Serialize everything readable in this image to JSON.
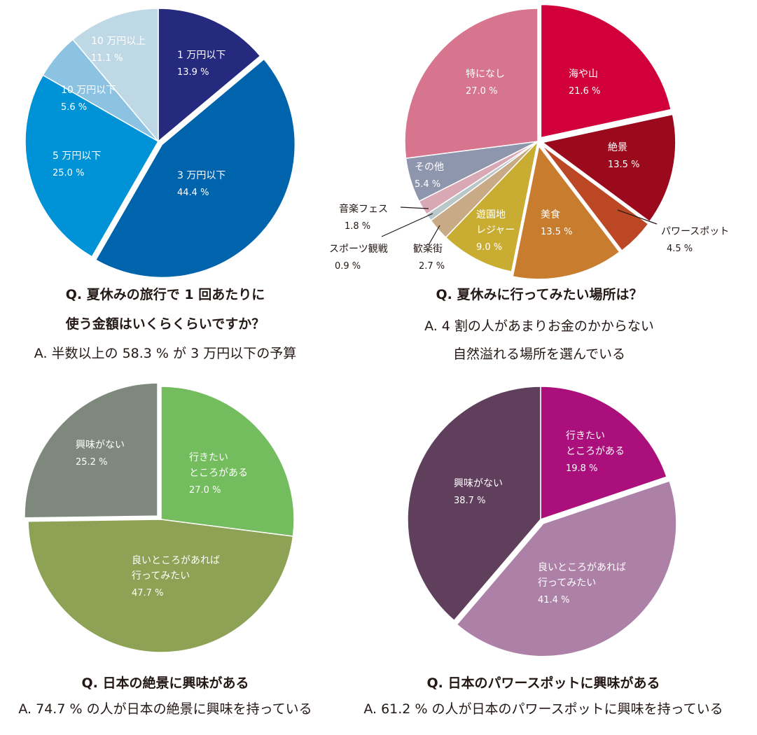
{
  "chart_data": [
    {
      "type": "pie",
      "title": "Q. 夏休みの旅行で 1 回あたりに\n使う金額はいくらくらいですか？",
      "subtitle": "A. 半数以上の 58.3 % が 3 万円以下の予算",
      "categories": [
        "1 万円以下",
        "3 万円以下",
        "5 万円以下",
        "10 万円以下",
        "10 万円以上"
      ],
      "values": [
        13.9,
        44.4,
        25.0,
        5.6,
        11.1
      ],
      "value_labels": [
        "13.9 %",
        "44.4 %",
        "25.0 %",
        "5.6 %",
        "11.1 %"
      ],
      "colors": [
        "#252a7e",
        "#0064ad",
        "#0092d6",
        "#8cc3e2",
        "#bfd8e5"
      ]
    },
    {
      "type": "pie",
      "title": "Q. 夏休みに行ってみたい場所は？",
      "subtitle": "A. 4 割の人があまりお金のかからない\n自然溢れる場所を選んでいる",
      "categories": [
        "海や山",
        "絶景",
        "パワースポット",
        "美食",
        "遊園地\nレジャー",
        "歓楽街",
        "スポーツ観戦",
        "音楽フェス",
        "その他",
        "特になし"
      ],
      "values": [
        21.6,
        13.5,
        4.5,
        13.5,
        9.0,
        2.7,
        0.9,
        1.8,
        5.4,
        27.0
      ],
      "value_labels": [
        "21.6 %",
        "13.5 %",
        "4.5 %",
        "13.5 %",
        "9.0 %",
        "2.7 %",
        "0.9 %",
        "1.8 %",
        "5.4 %",
        "27.0 %"
      ],
      "colors": [
        "#d2003a",
        "#9a0a1c",
        "#bc4724",
        "#c87c2e",
        "#c9ad32",
        "#c8aa86",
        "#b9c7c9",
        "#d8a8b4",
        "#8e96ae",
        "#d7748e"
      ]
    },
    {
      "type": "pie",
      "title": "Q. 日本の絶景に興味がある",
      "subtitle": "A. 74.7 % の人が日本の絶景に興味を持っている",
      "categories": [
        "行きたい\nところがある",
        "良いところがあれば\n行ってみたい",
        "興味がない"
      ],
      "values": [
        27.0,
        47.7,
        25.2
      ],
      "value_labels": [
        "27.0 %",
        "47.7 %",
        "25.2 %"
      ],
      "colors": [
        "#74bd5e",
        "#8da254",
        "#7e887c"
      ]
    },
    {
      "type": "pie",
      "title": "Q. 日本のパワースポットに興味がある",
      "subtitle": "A. 61.2 % の人が日本のパワースポットに興味を持っている",
      "categories": [
        "行きたい\nところがある",
        "良いところがあれば\n行ってみたい",
        "興味がない"
      ],
      "values": [
        19.8,
        41.4,
        38.7
      ],
      "value_labels": [
        "19.8 %",
        "41.4 %",
        "38.7 %"
      ],
      "colors": [
        "#ab0f7c",
        "#ad80a8",
        "#5f3f5c"
      ]
    }
  ]
}
